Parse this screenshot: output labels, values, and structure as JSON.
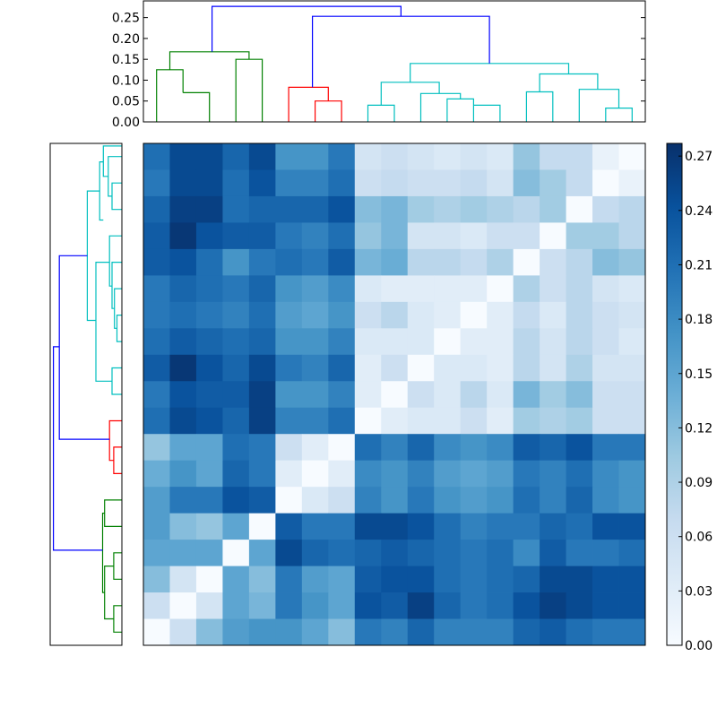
{
  "chart_data": [
    {
      "type": "dendrogram",
      "orientation": "top",
      "yticks": [
        "0.00",
        "0.05",
        "0.10",
        "0.15",
        "0.20",
        "0.25"
      ],
      "ylim": [
        0,
        0.29
      ],
      "xlim": [
        0,
        19
      ],
      "links": [
        {
          "xs": [
            0.5,
            0.5,
            1.5,
            1.5
          ],
          "ys": [
            0,
            0.125,
            0.125,
            0.07
          ],
          "color": "#008000"
        },
        {
          "xs": [
            1.5,
            1.5,
            2.5,
            2.5
          ],
          "ys": [
            0.07,
            0.07,
            0.07,
            0
          ],
          "color": "#008000"
        },
        {
          "xs": [
            3.5,
            3.5,
            4.5,
            4.5
          ],
          "ys": [
            0,
            0.15,
            0.15,
            0
          ],
          "color": "#008000"
        },
        {
          "xs": [
            1.0,
            1.0,
            4.0,
            4.0
          ],
          "ys": [
            0.125,
            0.168,
            0.168,
            0.15
          ],
          "color": "#008000"
        },
        {
          "xs": [
            5.5,
            5.5,
            7.0,
            7.0
          ],
          "ys": [
            0,
            0.083,
            0.083,
            0.05
          ],
          "color": "#ff0000"
        },
        {
          "xs": [
            6.5,
            6.5,
            7.5,
            7.5
          ],
          "ys": [
            0,
            0.05,
            0.05,
            0
          ],
          "color": "#ff0000"
        },
        {
          "xs": [
            8.5,
            8.5,
            9.5,
            9.5
          ],
          "ys": [
            0,
            0.04,
            0.04,
            0
          ],
          "color": "#00bfbf"
        },
        {
          "xs": [
            11.5,
            11.5,
            12.5,
            12.5
          ],
          "ys": [
            0,
            0.055,
            0.055,
            0
          ],
          "color": "#00bfbf"
        },
        {
          "xs": [
            12.5,
            12.5,
            13.5,
            13.5
          ],
          "ys": [
            0.04,
            0.04,
            0.04,
            0
          ],
          "color": "#00bfbf"
        },
        {
          "xs": [
            10.5,
            10.5,
            12.0,
            12.0
          ],
          "ys": [
            0,
            0.068,
            0.068,
            0.055
          ],
          "color": "#00bfbf"
        },
        {
          "xs": [
            9.0,
            9.0,
            11.2,
            11.2
          ],
          "ys": [
            0.04,
            0.095,
            0.095,
            0.068
          ],
          "color": "#00bfbf"
        },
        {
          "xs": [
            17.5,
            17.5,
            18.5,
            18.5
          ],
          "ys": [
            0,
            0.033,
            0.033,
            0
          ],
          "color": "#00bfbf"
        },
        {
          "xs": [
            16.5,
            16.5,
            18.0,
            18.0
          ],
          "ys": [
            0,
            0.078,
            0.078,
            0.033
          ],
          "color": "#00bfbf"
        },
        {
          "xs": [
            14.5,
            14.5,
            15.5,
            15.5
          ],
          "ys": [
            0,
            0.072,
            0.072,
            0
          ],
          "color": "#00bfbf"
        },
        {
          "xs": [
            15.0,
            15.0,
            17.2,
            17.2
          ],
          "ys": [
            0.072,
            0.115,
            0.115,
            0.078
          ],
          "color": "#00bfbf"
        },
        {
          "xs": [
            10.1,
            10.1,
            16.1,
            16.1
          ],
          "ys": [
            0.095,
            0.14,
            0.14,
            0.115
          ],
          "color": "#00bfbf"
        },
        {
          "xs": [
            6.4,
            6.4,
            13.1,
            13.1
          ],
          "ys": [
            0.083,
            0.253,
            0.253,
            0.14
          ],
          "color": "#0000ff"
        },
        {
          "xs": [
            2.6,
            2.6,
            9.75,
            9.75
          ],
          "ys": [
            0.168,
            0.277,
            0.277,
            0.253
          ],
          "color": "#0000ff"
        }
      ]
    },
    {
      "type": "dendrogram",
      "orientation": "left",
      "xlim": [
        0,
        0.29
      ],
      "ylim": [
        0,
        19
      ],
      "links": [
        {
          "ys": [
            0.5,
            0.5,
            1.5,
            1.5
          ],
          "xs": [
            0,
            0.033,
            0.033,
            0
          ],
          "color": "#008000"
        },
        {
          "ys": [
            2.5,
            2.5,
            3.5,
            3.5
          ],
          "xs": [
            0,
            0.033,
            0.033,
            0
          ],
          "color": "#008000"
        },
        {
          "ys": [
            1.0,
            1.0,
            3.0,
            3.0
          ],
          "xs": [
            0.033,
            0.07,
            0.07,
            0.033
          ],
          "color": "#008000"
        },
        {
          "ys": [
            4.5,
            4.5,
            5.5,
            5.5
          ],
          "xs": [
            0,
            0.07,
            0.07,
            0
          ],
          "color": "#008000"
        },
        {
          "ys": [
            2.0,
            2.0,
            5.0,
            5.0
          ],
          "xs": [
            0.07,
            0.078,
            0.078,
            0.07
          ],
          "color": "#008000"
        },
        {
          "ys": [
            6.5,
            6.5,
            7.5,
            7.5
          ],
          "xs": [
            0,
            0.033,
            0.033,
            0
          ],
          "color": "#ff0000"
        },
        {
          "ys": [
            7.0,
            7.0,
            8.5,
            8.5
          ],
          "xs": [
            0.033,
            0.05,
            0.05,
            0
          ],
          "color": "#ff0000"
        },
        {
          "ys": [
            9.5,
            9.5,
            10.5,
            10.5
          ],
          "xs": [
            0,
            0.04,
            0.04,
            0
          ],
          "color": "#00bfbf"
        },
        {
          "ys": [
            11.5,
            11.5,
            12.5,
            12.5
          ],
          "xs": [
            0,
            0.02,
            0.02,
            0
          ],
          "color": "#00bfbf"
        },
        {
          "ys": [
            12.0,
            12.0,
            13.5,
            13.5
          ],
          "xs": [
            0.02,
            0.03,
            0.03,
            0
          ],
          "color": "#00bfbf"
        },
        {
          "ys": [
            12.75,
            12.75,
            14.5,
            14.5
          ],
          "xs": [
            0.03,
            0.04,
            0.04,
            0
          ],
          "color": "#00bfbf"
        },
        {
          "ys": [
            13.6,
            13.6,
            15.5,
            15.5
          ],
          "xs": [
            0.04,
            0.05,
            0.05,
            0
          ],
          "color": "#00bfbf"
        },
        {
          "ys": [
            10.0,
            10.0,
            14.5,
            14.5
          ],
          "xs": [
            0.04,
            0.105,
            0.105,
            0.05
          ],
          "color": "#00bfbf"
        },
        {
          "ys": [
            16.5,
            16.5,
            17.5,
            17.5
          ],
          "xs": [
            0,
            0.04,
            0.04,
            0
          ],
          "color": "#00bfbf"
        },
        {
          "ys": [
            17.0,
            17.0,
            18.5,
            18.5
          ],
          "xs": [
            0.04,
            0.055,
            0.055,
            0
          ],
          "color": "#00bfbf"
        },
        {
          "ys": [
            17.75,
            17.75,
            18.9,
            18.9
          ],
          "xs": [
            0.055,
            0.075,
            0.075,
            0
          ],
          "color": "#00bfbf"
        },
        {
          "ys": [
            18.3,
            18.3,
            16.1,
            16.1
          ],
          "xs": [
            0.075,
            0.09,
            0.09,
            0.075
          ],
          "color": "#00bfbf"
        },
        {
          "ys": [
            12.3,
            12.3,
            17.2,
            17.2
          ],
          "xs": [
            0.105,
            0.14,
            0.14,
            0.09
          ],
          "color": "#00bfbf"
        },
        {
          "ys": [
            7.8,
            7.8,
            14.75,
            14.75
          ],
          "xs": [
            0.05,
            0.253,
            0.253,
            0.14
          ],
          "color": "#0000ff"
        },
        {
          "ys": [
            3.6,
            3.6,
            11.3,
            11.3
          ],
          "xs": [
            0.078,
            0.277,
            0.277,
            0.253
          ],
          "color": "#0000ff"
        }
      ]
    },
    {
      "type": "heatmap",
      "rows": 19,
      "cols": 19,
      "vmin": 0,
      "vmax": 0.277,
      "colormap": [
        "#f7fbff",
        "#deebf7",
        "#c6dbef",
        "#9ecae1",
        "#6baed6",
        "#4292c6",
        "#2171b5",
        "#08519c",
        "#08306b"
      ],
      "values": [
        [
          0.21,
          0.25,
          0.25,
          0.22,
          0.25,
          0.17,
          0.17,
          0.2,
          0.05,
          0.06,
          0.05,
          0.04,
          0.05,
          0.04,
          0.11,
          0.07,
          0.07,
          0.02,
          0.0
        ],
        [
          0.2,
          0.25,
          0.25,
          0.21,
          0.24,
          0.19,
          0.19,
          0.21,
          0.06,
          0.07,
          0.06,
          0.06,
          0.07,
          0.05,
          0.12,
          0.1,
          0.07,
          0.0,
          0.02
        ],
        [
          0.22,
          0.26,
          0.26,
          0.21,
          0.22,
          0.22,
          0.22,
          0.24,
          0.12,
          0.13,
          0.1,
          0.09,
          0.1,
          0.09,
          0.08,
          0.1,
          0.0,
          0.07,
          0.08
        ],
        [
          0.23,
          0.27,
          0.24,
          0.23,
          0.23,
          0.2,
          0.19,
          0.21,
          0.11,
          0.13,
          0.05,
          0.05,
          0.04,
          0.06,
          0.06,
          0.0,
          0.1,
          0.1,
          0.08
        ],
        [
          0.23,
          0.24,
          0.21,
          0.17,
          0.2,
          0.21,
          0.2,
          0.23,
          0.13,
          0.14,
          0.08,
          0.08,
          0.07,
          0.09,
          0.0,
          0.06,
          0.08,
          0.12,
          0.11
        ],
        [
          0.2,
          0.22,
          0.21,
          0.2,
          0.22,
          0.17,
          0.16,
          0.18,
          0.04,
          0.03,
          0.03,
          0.03,
          0.03,
          0.0,
          0.09,
          0.06,
          0.08,
          0.05,
          0.04
        ],
        [
          0.2,
          0.21,
          0.2,
          0.19,
          0.21,
          0.16,
          0.15,
          0.17,
          0.06,
          0.08,
          0.04,
          0.03,
          0.0,
          0.03,
          0.07,
          0.04,
          0.08,
          0.06,
          0.05
        ],
        [
          0.21,
          0.23,
          0.22,
          0.21,
          0.22,
          0.17,
          0.17,
          0.19,
          0.04,
          0.04,
          0.04,
          0.0,
          0.03,
          0.03,
          0.08,
          0.05,
          0.08,
          0.06,
          0.04
        ],
        [
          0.23,
          0.27,
          0.24,
          0.22,
          0.25,
          0.2,
          0.19,
          0.22,
          0.03,
          0.06,
          0.0,
          0.04,
          0.04,
          0.03,
          0.08,
          0.05,
          0.09,
          0.05,
          0.05
        ],
        [
          0.2,
          0.24,
          0.23,
          0.23,
          0.26,
          0.17,
          0.17,
          0.19,
          0.03,
          0.0,
          0.06,
          0.04,
          0.08,
          0.04,
          0.13,
          0.1,
          0.12,
          0.06,
          0.06
        ],
        [
          0.21,
          0.25,
          0.24,
          0.22,
          0.26,
          0.19,
          0.19,
          0.21,
          0.0,
          0.03,
          0.04,
          0.04,
          0.06,
          0.03,
          0.1,
          0.09,
          0.1,
          0.06,
          0.06
        ],
        [
          0.11,
          0.15,
          0.15,
          0.21,
          0.2,
          0.06,
          0.03,
          0.0,
          0.21,
          0.19,
          0.22,
          0.18,
          0.17,
          0.18,
          0.23,
          0.22,
          0.24,
          0.2,
          0.2
        ],
        [
          0.14,
          0.17,
          0.15,
          0.22,
          0.2,
          0.03,
          0.0,
          0.03,
          0.18,
          0.17,
          0.19,
          0.16,
          0.15,
          0.16,
          0.2,
          0.19,
          0.21,
          0.18,
          0.17
        ],
        [
          0.16,
          0.2,
          0.2,
          0.24,
          0.23,
          0.0,
          0.04,
          0.06,
          0.19,
          0.17,
          0.2,
          0.17,
          0.16,
          0.17,
          0.21,
          0.19,
          0.22,
          0.18,
          0.17
        ],
        [
          0.16,
          0.12,
          0.11,
          0.15,
          0.0,
          0.23,
          0.2,
          0.2,
          0.25,
          0.25,
          0.24,
          0.21,
          0.19,
          0.2,
          0.2,
          0.22,
          0.21,
          0.24,
          0.24
        ],
        [
          0.15,
          0.15,
          0.15,
          0.0,
          0.15,
          0.25,
          0.22,
          0.21,
          0.22,
          0.23,
          0.22,
          0.21,
          0.2,
          0.21,
          0.18,
          0.23,
          0.2,
          0.2,
          0.21
        ],
        [
          0.12,
          0.05,
          0.0,
          0.15,
          0.12,
          0.2,
          0.16,
          0.15,
          0.23,
          0.24,
          0.24,
          0.21,
          0.2,
          0.21,
          0.22,
          0.25,
          0.25,
          0.24,
          0.24
        ],
        [
          0.06,
          0.0,
          0.05,
          0.15,
          0.13,
          0.2,
          0.17,
          0.15,
          0.24,
          0.23,
          0.26,
          0.22,
          0.2,
          0.21,
          0.24,
          0.26,
          0.25,
          0.24,
          0.24
        ],
        [
          0.0,
          0.06,
          0.12,
          0.16,
          0.17,
          0.17,
          0.15,
          0.12,
          0.2,
          0.19,
          0.22,
          0.19,
          0.19,
          0.19,
          0.22,
          0.23,
          0.21,
          0.2,
          0.2
        ]
      ]
    },
    {
      "type": "colorbar",
      "ticks": [
        "0.00",
        "0.03",
        "0.06",
        "0.09",
        "0.12",
        "0.15",
        "0.18",
        "0.21",
        "0.24",
        "0.27"
      ],
      "vmin": 0,
      "vmax": 0.277
    }
  ]
}
